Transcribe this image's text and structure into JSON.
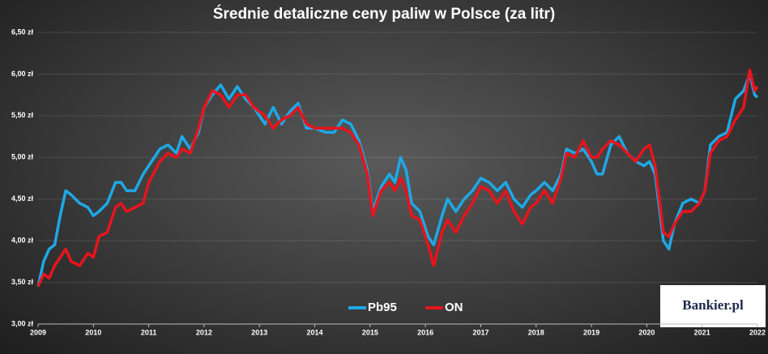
{
  "chart_data": {
    "type": "line",
    "title": "Średnie detaliczne ceny paliw w Polsce (za litr)",
    "logo": "Bankier.pl",
    "x": [
      2009.0,
      2009.1,
      2009.2,
      2009.3,
      2009.4,
      2009.5,
      2009.6,
      2009.75,
      2009.9,
      2010.0,
      2010.1,
      2010.25,
      2010.4,
      2010.5,
      2010.6,
      2010.75,
      2010.9,
      2011.0,
      2011.2,
      2011.35,
      2011.5,
      2011.6,
      2011.75,
      2011.9,
      2012.0,
      2012.15,
      2012.3,
      2012.45,
      2012.6,
      2012.75,
      2012.9,
      2013.0,
      2013.1,
      2013.25,
      2013.4,
      2013.55,
      2013.7,
      2013.85,
      2014.0,
      2014.2,
      2014.35,
      2014.5,
      2014.65,
      2014.8,
      2014.95,
      2015.05,
      2015.2,
      2015.35,
      2015.45,
      2015.55,
      2015.65,
      2015.75,
      2015.9,
      2016.05,
      2016.15,
      2016.3,
      2016.4,
      2016.55,
      2016.7,
      2016.85,
      2017.0,
      2017.15,
      2017.3,
      2017.45,
      2017.6,
      2017.75,
      2017.9,
      2018.0,
      2018.15,
      2018.3,
      2018.45,
      2018.55,
      2018.7,
      2018.85,
      2019.0,
      2019.1,
      2019.2,
      2019.35,
      2019.5,
      2019.65,
      2019.8,
      2019.95,
      2020.05,
      2020.15,
      2020.3,
      2020.4,
      2020.5,
      2020.65,
      2020.8,
      2020.95,
      2021.05,
      2021.15,
      2021.3,
      2021.45,
      2021.6,
      2021.75,
      2021.86,
      2021.95,
      2022.0
    ],
    "series": [
      {
        "name": "Pb95",
        "color": "#1ea8e6",
        "values": [
          3.45,
          3.75,
          3.9,
          3.95,
          4.3,
          4.6,
          4.55,
          4.45,
          4.4,
          4.3,
          4.35,
          4.45,
          4.7,
          4.7,
          4.6,
          4.6,
          4.8,
          4.9,
          5.1,
          5.15,
          5.05,
          5.25,
          5.1,
          5.3,
          5.6,
          5.75,
          5.87,
          5.7,
          5.85,
          5.7,
          5.6,
          5.5,
          5.4,
          5.6,
          5.4,
          5.55,
          5.65,
          5.35,
          5.35,
          5.3,
          5.3,
          5.45,
          5.4,
          5.2,
          4.85,
          4.35,
          4.65,
          4.8,
          4.7,
          5.0,
          4.85,
          4.45,
          4.35,
          4.05,
          3.95,
          4.3,
          4.5,
          4.35,
          4.5,
          4.6,
          4.75,
          4.7,
          4.6,
          4.7,
          4.5,
          4.4,
          4.55,
          4.6,
          4.7,
          4.6,
          4.8,
          5.1,
          5.05,
          5.1,
          4.95,
          4.8,
          4.8,
          5.15,
          5.25,
          5.05,
          4.95,
          4.9,
          4.95,
          4.8,
          4.0,
          3.9,
          4.2,
          4.45,
          4.5,
          4.45,
          4.6,
          5.15,
          5.25,
          5.3,
          5.7,
          5.8,
          6.0,
          5.75,
          5.72
        ]
      },
      {
        "name": "ON",
        "color": "#e8141c",
        "values": [
          3.45,
          3.6,
          3.55,
          3.7,
          3.8,
          3.9,
          3.75,
          3.7,
          3.85,
          3.8,
          4.05,
          4.1,
          4.4,
          4.45,
          4.35,
          4.4,
          4.45,
          4.7,
          4.95,
          5.05,
          5.0,
          5.1,
          5.05,
          5.35,
          5.6,
          5.8,
          5.75,
          5.6,
          5.75,
          5.75,
          5.6,
          5.55,
          5.5,
          5.35,
          5.45,
          5.5,
          5.6,
          5.4,
          5.35,
          5.35,
          5.35,
          5.35,
          5.3,
          5.15,
          4.8,
          4.3,
          4.6,
          4.7,
          4.6,
          4.75,
          4.6,
          4.3,
          4.25,
          3.95,
          3.7,
          4.1,
          4.25,
          4.1,
          4.3,
          4.45,
          4.65,
          4.6,
          4.45,
          4.6,
          4.35,
          4.2,
          4.4,
          4.45,
          4.6,
          4.45,
          4.75,
          5.05,
          5.0,
          5.2,
          5.0,
          5.0,
          5.1,
          5.2,
          5.15,
          5.05,
          4.95,
          5.1,
          5.15,
          4.9,
          4.1,
          4.05,
          4.2,
          4.35,
          4.35,
          4.45,
          4.6,
          5.05,
          5.2,
          5.25,
          5.45,
          5.6,
          6.05,
          5.8,
          5.85
        ]
      }
    ],
    "xlim": [
      2009,
      2022
    ],
    "xticks": [
      2009,
      2010,
      2011,
      2012,
      2013,
      2014,
      2015,
      2016,
      2017,
      2018,
      2019,
      2020,
      2021,
      2022
    ],
    "ylim": [
      3.0,
      6.5
    ],
    "yticks": [
      {
        "value": 3.0,
        "label": "3,00 zł"
      },
      {
        "value": 3.5,
        "label": "3,50 zł"
      },
      {
        "value": 4.0,
        "label": "4,00 zł"
      },
      {
        "value": 4.5,
        "label": "4,50 zł"
      },
      {
        "value": 5.0,
        "label": "5,00 zł"
      },
      {
        "value": 5.5,
        "label": "5,50 zł"
      },
      {
        "value": 6.0,
        "label": "6,00 zł"
      },
      {
        "value": 6.5,
        "label": "6,50 zł"
      }
    ],
    "grid": true,
    "legend": "bottom"
  }
}
